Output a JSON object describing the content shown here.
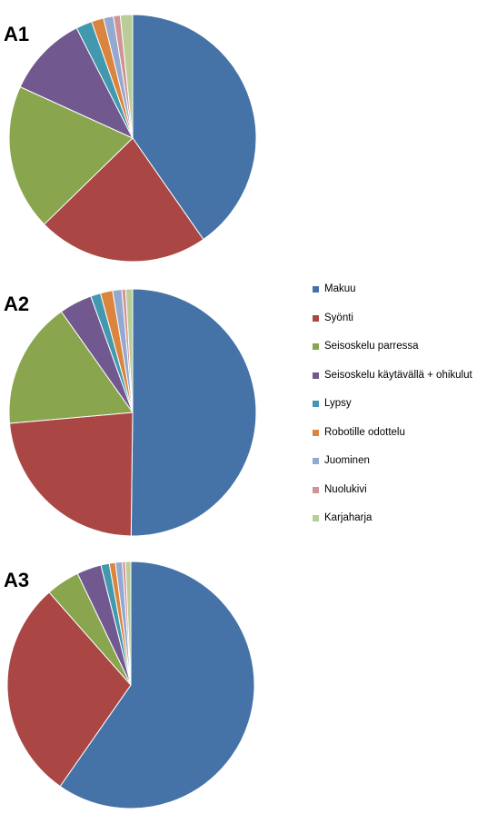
{
  "chart_data": [
    {
      "type": "pie",
      "title": "A1",
      "categories": [
        "Makuu",
        "Syönti",
        "Seisoskelu parressa",
        "Seisoskelu käytävällä + ohikulut",
        "Lypsy",
        "Robotille odottelu",
        "Juominen",
        "Nuolukivi",
        "Karjaharja"
      ],
      "values": [
        40.3,
        22.4,
        19.1,
        10.7,
        2.1,
        1.6,
        1.3,
        0.9,
        1.6
      ],
      "start_angle": "12 o'clock",
      "direction": "clockwise"
    },
    {
      "type": "pie",
      "title": "A2",
      "categories": [
        "Makuu",
        "Syönti",
        "Seisoskelu parressa",
        "Seisoskelu käytävällä + ohikulut",
        "Lypsy",
        "Robotille odottelu",
        "Juominen",
        "Nuolukivi",
        "Karjaharja"
      ],
      "values": [
        50.2,
        23.4,
        16.6,
        4.3,
        1.3,
        1.6,
        1.2,
        0.5,
        0.9
      ],
      "start_angle": "12 o'clock",
      "direction": "clockwise"
    },
    {
      "type": "pie",
      "title": "A3",
      "categories": [
        "Makuu",
        "Syönti",
        "Seisoskelu parressa",
        "Seisoskelu käytävällä + ohikulut",
        "Lypsy",
        "Robotille odottelu",
        "Juominen",
        "Nuolukivi",
        "Karjaharja"
      ],
      "values": [
        59.7,
        28.8,
        4.4,
        3.2,
        1.1,
        0.8,
        0.9,
        0.4,
        0.7
      ],
      "start_angle": "12 o'clock",
      "direction": "clockwise"
    }
  ],
  "legend": {
    "placement": "right",
    "items": [
      {
        "label": "Makuu",
        "color": "#4572A7"
      },
      {
        "label": "Syönti",
        "color": "#AA4643"
      },
      {
        "label": "Seisoskelu parressa",
        "color": "#89A54E"
      },
      {
        "label": "Seisoskelu käytävällä + ohikulut",
        "color": "#71588F"
      },
      {
        "label": "Lypsy",
        "color": "#4198AF"
      },
      {
        "label": "Robotille odottelu",
        "color": "#DB843D"
      },
      {
        "label": "Juominen",
        "color": "#93A9CF"
      },
      {
        "label": "Nuolukivi",
        "color": "#D19392"
      },
      {
        "label": "Karjaharja",
        "color": "#B9CD96"
      }
    ]
  }
}
